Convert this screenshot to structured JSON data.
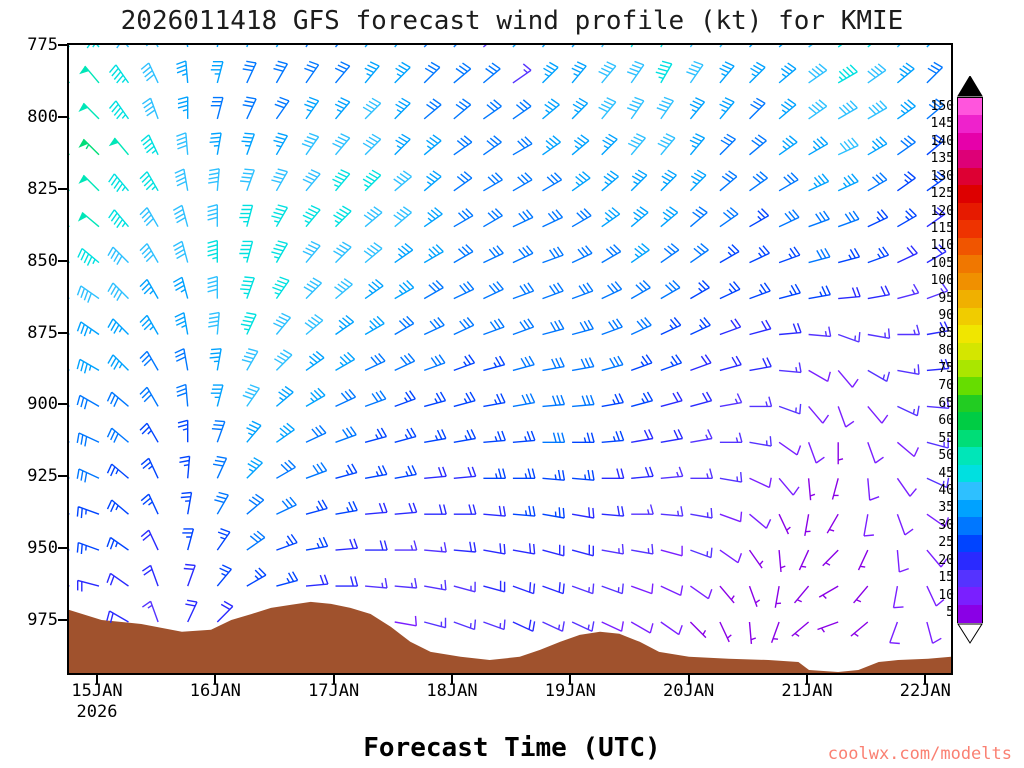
{
  "title": "2026011418 GFS forecast wind profile (kt) for KMIE",
  "xlabel": "Forecast Time (UTC)",
  "watermark": "coolwx.com/modelts",
  "axes": {
    "x_ticks": [
      "15JAN",
      "16JAN",
      "17JAN",
      "18JAN",
      "19JAN",
      "20JAN",
      "21JAN",
      "22JAN"
    ],
    "year_label": "2026",
    "y_ticks": [
      "775",
      "800",
      "825",
      "850",
      "875",
      "900",
      "925",
      "950",
      "975"
    ]
  },
  "colorbar": {
    "values": [
      150,
      145,
      140,
      135,
      130,
      125,
      120,
      115,
      110,
      105,
      100,
      95,
      90,
      85,
      80,
      75,
      70,
      65,
      60,
      55,
      50,
      45,
      40,
      35,
      30,
      25,
      20,
      15,
      10,
      5
    ],
    "colors": [
      "#ff55dd",
      "#ee22cc",
      "#e600aa",
      "#dd0077",
      "#dd0033",
      "#dd0000",
      "#e61a00",
      "#ee3300",
      "#f05500",
      "#f07700",
      "#f09000",
      "#f0b000",
      "#f0cc00",
      "#f0e600",
      "#d4e600",
      "#aae600",
      "#66dd00",
      "#22cc22",
      "#00cc44",
      "#00dd77",
      "#00e6b8",
      "#00e0e0",
      "#2ec0ff",
      "#00a2ff",
      "#0077ff",
      "#0044ff",
      "#2a2aff",
      "#5533ff",
      "#7a1fff",
      "#8a00e6"
    ],
    "top_cap": "black-triangle",
    "bottom_cap": "white-triangle"
  },
  "chart_data": {
    "type": "wind-barb-time-height",
    "model": "GFS",
    "init_time": "2026011418",
    "station": "KMIE",
    "units": "kt",
    "x_axis": {
      "tick_labels": [
        "15JAN",
        "16JAN",
        "17JAN",
        "18JAN",
        "19JAN",
        "20JAN",
        "21JAN",
        "22JAN"
      ],
      "year": "2026",
      "time_step_hours": 6
    },
    "y_axis": {
      "tick_values": [
        775,
        800,
        825,
        850,
        875,
        900,
        925,
        950,
        975
      ]
    },
    "pressure_levels_hpa": [
      775,
      787.5,
      800,
      812.5,
      825,
      837.5,
      850,
      862.5,
      875,
      887.5,
      900,
      912.5,
      925,
      937.5,
      950,
      962.5,
      975
    ],
    "speeds_kt": [
      [
        45,
        40,
        40,
        35,
        35,
        35,
        35,
        30,
        30,
        35,
        35,
        30,
        30,
        15,
        35,
        35,
        35,
        40,
        45,
        45,
        40,
        40,
        35,
        35,
        40,
        45,
        45,
        40,
        35
      ],
      [
        50,
        45,
        40,
        35,
        35,
        30,
        30,
        30,
        30,
        35,
        35,
        30,
        30,
        30,
        15,
        35,
        35,
        40,
        40,
        45,
        40,
        35,
        35,
        35,
        40,
        45,
        40,
        35,
        30
      ],
      [
        50,
        45,
        40,
        35,
        30,
        30,
        30,
        35,
        35,
        40,
        35,
        30,
        30,
        30,
        30,
        35,
        35,
        40,
        40,
        40,
        35,
        35,
        30,
        35,
        40,
        40,
        40,
        35,
        30
      ],
      [
        55,
        50,
        45,
        40,
        35,
        35,
        35,
        40,
        40,
        40,
        35,
        35,
        30,
        30,
        30,
        35,
        35,
        35,
        40,
        40,
        35,
        30,
        30,
        35,
        35,
        40,
        35,
        30,
        25
      ],
      [
        50,
        45,
        45,
        40,
        40,
        40,
        40,
        40,
        45,
        45,
        40,
        35,
        30,
        30,
        30,
        30,
        35,
        35,
        35,
        35,
        35,
        30,
        30,
        30,
        35,
        35,
        30,
        25,
        25
      ],
      [
        50,
        45,
        40,
        40,
        40,
        45,
        45,
        45,
        45,
        40,
        40,
        35,
        30,
        30,
        30,
        30,
        30,
        35,
        35,
        35,
        30,
        30,
        25,
        30,
        30,
        30,
        25,
        25,
        20
      ],
      [
        45,
        40,
        40,
        40,
        45,
        45,
        45,
        40,
        40,
        40,
        35,
        35,
        30,
        30,
        30,
        30,
        30,
        30,
        35,
        30,
        30,
        25,
        25,
        25,
        30,
        25,
        25,
        20,
        20
      ],
      [
        40,
        40,
        35,
        35,
        40,
        45,
        45,
        40,
        40,
        35,
        35,
        30,
        30,
        30,
        30,
        30,
        30,
        30,
        30,
        30,
        25,
        25,
        25,
        25,
        25,
        20,
        20,
        15,
        15
      ],
      [
        35,
        35,
        35,
        35,
        40,
        45,
        40,
        40,
        35,
        35,
        30,
        30,
        30,
        30,
        30,
        30,
        30,
        30,
        30,
        25,
        25,
        20,
        20,
        20,
        15,
        15,
        15,
        15,
        20
      ],
      [
        35,
        35,
        30,
        30,
        35,
        40,
        40,
        35,
        35,
        30,
        30,
        30,
        25,
        25,
        30,
        30,
        30,
        30,
        25,
        25,
        20,
        20,
        20,
        15,
        10,
        10,
        15,
        15,
        20
      ],
      [
        30,
        30,
        30,
        30,
        35,
        40,
        35,
        35,
        30,
        30,
        25,
        25,
        25,
        25,
        30,
        30,
        30,
        25,
        25,
        20,
        20,
        15,
        15,
        15,
        10,
        10,
        10,
        15,
        15
      ],
      [
        30,
        30,
        25,
        25,
        30,
        35,
        35,
        30,
        30,
        25,
        25,
        25,
        25,
        25,
        25,
        30,
        25,
        25,
        20,
        20,
        15,
        15,
        15,
        10,
        10,
        5,
        10,
        10,
        15
      ],
      [
        30,
        25,
        25,
        25,
        30,
        35,
        30,
        30,
        25,
        25,
        25,
        20,
        20,
        25,
        25,
        25,
        25,
        20,
        20,
        15,
        15,
        15,
        10,
        10,
        5,
        5,
        10,
        10,
        15
      ],
      [
        25,
        25,
        25,
        25,
        30,
        30,
        30,
        25,
        25,
        20,
        20,
        20,
        20,
        20,
        25,
        25,
        20,
        20,
        15,
        15,
        15,
        10,
        10,
        5,
        5,
        5,
        10,
        10,
        10
      ],
      [
        25,
        25,
        20,
        25,
        25,
        30,
        25,
        25,
        20,
        20,
        15,
        15,
        20,
        20,
        20,
        20,
        20,
        15,
        15,
        10,
        15,
        10,
        5,
        5,
        5,
        5,
        5,
        10,
        10
      ],
      [
        20,
        20,
        20,
        20,
        25,
        25,
        25,
        20,
        20,
        15,
        15,
        15,
        15,
        20,
        20,
        20,
        15,
        15,
        10,
        10,
        10,
        5,
        5,
        5,
        5,
        5,
        5,
        10,
        10
      ],
      [
        20,
        20,
        15,
        20,
        20,
        25,
        20,
        20,
        15,
        15,
        10,
        15,
        15,
        15,
        20,
        15,
        15,
        10,
        10,
        10,
        5,
        5,
        5,
        5,
        5,
        5,
        5,
        10,
        10
      ]
    ],
    "directions_deg_from": [
      [
        320,
        320,
        330,
        350,
        10,
        20,
        30,
        30,
        40,
        40,
        40,
        45,
        45,
        50,
        45,
        40,
        40,
        35,
        30,
        30,
        35,
        40,
        45,
        50,
        55,
        55,
        50,
        45,
        45
      ],
      [
        320,
        325,
        335,
        355,
        15,
        25,
        30,
        35,
        40,
        40,
        45,
        45,
        50,
        50,
        55,
        45,
        40,
        40,
        35,
        30,
        35,
        40,
        45,
        50,
        55,
        60,
        55,
        50,
        45
      ],
      [
        315,
        325,
        340,
        0,
        15,
        25,
        35,
        35,
        40,
        45,
        45,
        50,
        50,
        55,
        55,
        50,
        45,
        40,
        35,
        35,
        40,
        40,
        45,
        50,
        55,
        60,
        60,
        55,
        50
      ],
      [
        315,
        320,
        335,
        355,
        10,
        20,
        30,
        35,
        40,
        45,
        45,
        50,
        55,
        55,
        60,
        55,
        50,
        45,
        40,
        40,
        40,
        45,
        50,
        55,
        60,
        65,
        60,
        55,
        50
      ],
      [
        315,
        320,
        330,
        350,
        5,
        20,
        30,
        40,
        40,
        45,
        50,
        50,
        55,
        60,
        60,
        60,
        55,
        50,
        45,
        45,
        45,
        50,
        55,
        60,
        65,
        65,
        60,
        55,
        55
      ],
      [
        310,
        320,
        330,
        345,
        0,
        15,
        30,
        40,
        45,
        50,
        50,
        55,
        60,
        60,
        65,
        65,
        60,
        55,
        50,
        50,
        50,
        55,
        60,
        65,
        70,
        70,
        65,
        60,
        55
      ],
      [
        310,
        315,
        330,
        345,
        0,
        15,
        30,
        40,
        45,
        50,
        55,
        60,
        60,
        65,
        65,
        70,
        65,
        60,
        55,
        55,
        55,
        60,
        65,
        70,
        75,
        75,
        70,
        65,
        60
      ],
      [
        305,
        315,
        330,
        345,
        0,
        20,
        35,
        45,
        50,
        55,
        60,
        60,
        65,
        65,
        70,
        70,
        70,
        65,
        60,
        60,
        60,
        65,
        70,
        75,
        80,
        85,
        80,
        75,
        70
      ],
      [
        305,
        315,
        330,
        350,
        5,
        25,
        40,
        50,
        55,
        60,
        60,
        65,
        65,
        70,
        70,
        75,
        75,
        70,
        65,
        65,
        65,
        70,
        75,
        85,
        95,
        110,
        100,
        90,
        80
      ],
      [
        300,
        315,
        330,
        350,
        10,
        30,
        45,
        55,
        60,
        65,
        65,
        70,
        70,
        75,
        75,
        80,
        80,
        75,
        70,
        70,
        70,
        75,
        80,
        95,
        120,
        140,
        120,
        100,
        85
      ],
      [
        300,
        310,
        330,
        355,
        15,
        35,
        50,
        60,
        65,
        70,
        70,
        75,
        75,
        80,
        80,
        85,
        85,
        80,
        75,
        75,
        75,
        80,
        90,
        110,
        140,
        160,
        140,
        115,
        95
      ],
      [
        295,
        310,
        330,
        0,
        20,
        40,
        55,
        65,
        70,
        75,
        75,
        80,
        80,
        85,
        85,
        90,
        90,
        85,
        80,
        80,
        80,
        90,
        100,
        125,
        160,
        180,
        160,
        130,
        105
      ],
      [
        295,
        310,
        335,
        5,
        25,
        45,
        60,
        70,
        75,
        80,
        80,
        85,
        85,
        90,
        90,
        95,
        95,
        90,
        85,
        85,
        90,
        100,
        115,
        140,
        175,
        195,
        175,
        145,
        115
      ],
      [
        290,
        310,
        335,
        10,
        30,
        50,
        65,
        75,
        80,
        85,
        85,
        90,
        90,
        95,
        95,
        100,
        100,
        95,
        90,
        95,
        100,
        110,
        130,
        155,
        190,
        210,
        190,
        160,
        125
      ],
      [
        290,
        305,
        335,
        15,
        35,
        55,
        70,
        80,
        85,
        90,
        90,
        95,
        95,
        100,
        100,
        105,
        105,
        100,
        100,
        105,
        110,
        125,
        145,
        175,
        205,
        225,
        205,
        175,
        140
      ],
      [
        285,
        305,
        340,
        20,
        40,
        60,
        75,
        85,
        90,
        95,
        95,
        100,
        105,
        105,
        110,
        110,
        110,
        110,
        110,
        115,
        125,
        140,
        160,
        190,
        220,
        240,
        220,
        190,
        155
      ],
      [
        285,
        300,
        340,
        25,
        45,
        65,
        80,
        90,
        95,
        100,
        100,
        105,
        110,
        110,
        115,
        115,
        115,
        115,
        120,
        125,
        135,
        155,
        175,
        200,
        230,
        250,
        230,
        200,
        165
      ]
    ],
    "terrain": {
      "color": "#a0522d",
      "profile_frac_pressure": [
        [
          0,
          970.8
        ],
        [
          0.037,
          974.3
        ],
        [
          0.082,
          975.7
        ],
        [
          0.128,
          978.4
        ],
        [
          0.161,
          977.7
        ],
        [
          0.184,
          974.3
        ],
        [
          0.207,
          972.2
        ],
        [
          0.229,
          970.1
        ],
        [
          0.252,
          969
        ],
        [
          0.274,
          968
        ],
        [
          0.297,
          968.7
        ],
        [
          0.319,
          970.1
        ],
        [
          0.342,
          972.2
        ],
        [
          0.365,
          976.7
        ],
        [
          0.387,
          981.9
        ],
        [
          0.41,
          985.4
        ],
        [
          0.444,
          987.1
        ],
        [
          0.477,
          988.2
        ],
        [
          0.511,
          987.1
        ],
        [
          0.534,
          984.7
        ],
        [
          0.557,
          981.9
        ],
        [
          0.579,
          979.5
        ],
        [
          0.602,
          978.4
        ],
        [
          0.624,
          979.1
        ],
        [
          0.647,
          981.9
        ],
        [
          0.669,
          985.4
        ],
        [
          0.703,
          987.1
        ],
        [
          0.748,
          987.8
        ],
        [
          0.793,
          988.2
        ],
        [
          0.827,
          988.9
        ],
        [
          0.839,
          991.7
        ],
        [
          0.872,
          992.4
        ],
        [
          0.895,
          991.7
        ],
        [
          0.918,
          988.9
        ],
        [
          0.94,
          988.2
        ],
        [
          0.974,
          987.8
        ],
        [
          1,
          987.1
        ]
      ]
    }
  }
}
